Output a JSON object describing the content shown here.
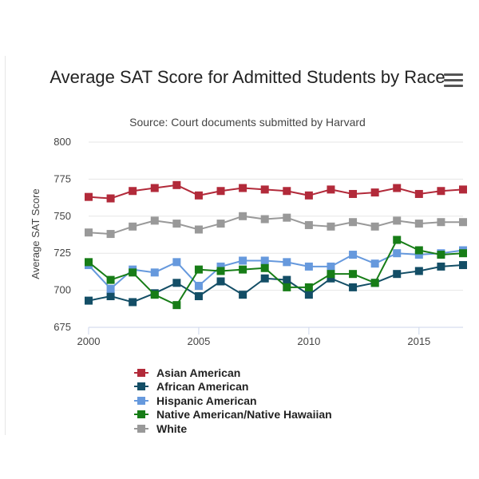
{
  "menu": {
    "icon": "hamburger-menu-icon"
  },
  "chart_data": {
    "type": "line",
    "title": "Average SAT Score for Admitted Students by Race",
    "subtitle": "Source: Court documents submitted by Harvard",
    "xlabel": "",
    "ylabel": "Average SAT Score",
    "x": [
      2000,
      2001,
      2002,
      2003,
      2004,
      2005,
      2006,
      2007,
      2008,
      2009,
      2010,
      2011,
      2012,
      2013,
      2014,
      2015,
      2016,
      2017
    ],
    "xlim": [
      2000,
      2017
    ],
    "ylim": [
      675,
      800
    ],
    "xticks": [
      "2000",
      "2005",
      "2010",
      "2015"
    ],
    "xtick_values": [
      2000,
      2005,
      2010,
      2015
    ],
    "yticks": [
      "675",
      "700",
      "725",
      "750",
      "775",
      "800"
    ],
    "ytick_values": [
      675,
      700,
      725,
      750,
      775,
      800
    ],
    "grid": "horizontal",
    "legend_position": "bottom",
    "series": [
      {
        "name": "Asian American",
        "color": "#b22a3a",
        "values": [
          763,
          762,
          767,
          769,
          771,
          764,
          767,
          769,
          768,
          767,
          764,
          768,
          765,
          766,
          769,
          765,
          767,
          768
        ]
      },
      {
        "name": "African American",
        "color": "#134e66",
        "values": [
          693,
          696,
          692,
          698,
          705,
          696,
          706,
          697,
          708,
          707,
          697,
          708,
          702,
          705,
          711,
          713,
          716,
          717
        ]
      },
      {
        "name": "Hispanic American",
        "color": "#6699dd",
        "values": [
          717,
          701,
          714,
          712,
          719,
          703,
          716,
          720,
          720,
          719,
          716,
          716,
          724,
          718,
          725,
          724,
          725,
          727
        ]
      },
      {
        "name": "Native American/Native Hawaiian",
        "color": "#177d17",
        "values": [
          719,
          707,
          712,
          697,
          690,
          714,
          713,
          714,
          715,
          702,
          702,
          711,
          711,
          705,
          734,
          727,
          724,
          725
        ]
      },
      {
        "name": "White",
        "color": "#999999",
        "values": [
          739,
          738,
          743,
          747,
          745,
          741,
          745,
          750,
          748,
          749,
          744,
          743,
          746,
          743,
          747,
          745,
          746,
          746
        ]
      }
    ]
  }
}
